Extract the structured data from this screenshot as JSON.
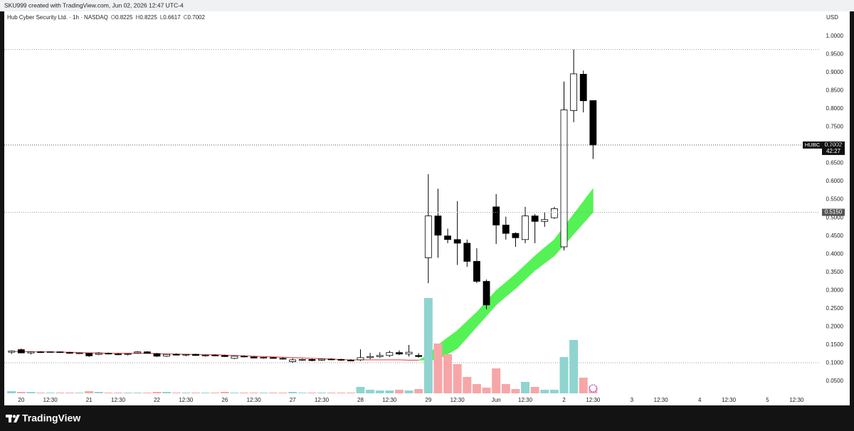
{
  "header": {
    "credit": "SKU999 created with TradingView.com, Jun 02, 2026 12:47 UTC-4"
  },
  "footer": {
    "brand": "TradingView"
  },
  "chart_data": {
    "type": "candlestick",
    "title": "Hub Cyber Security Ltd. · 1h · NASDAQ",
    "ohlc_keys": [
      "O",
      "H",
      "L",
      "C"
    ],
    "currency": "USD",
    "symbol_tag": "HUBC",
    "countdown": "42:27",
    "band_label": "0.5150",
    "up_color": "#ffffff",
    "down_color": "#000000",
    "volume_up_color": "#8fd4cf",
    "volume_down_color": "#f7a6a8",
    "band_color": "#55f255",
    "line_color": "#e0504f",
    "grid": false,
    "ylim": [
      0.011,
      1.068
    ],
    "yticks": [
      {
        "value": 0.05,
        "label": "0.0500"
      },
      {
        "value": 0.1,
        "label": "0.1000"
      },
      {
        "value": 0.15,
        "label": "0.1500"
      },
      {
        "value": 0.2,
        "label": "0.2000"
      },
      {
        "value": 0.25,
        "label": "0.2500"
      },
      {
        "value": 0.3,
        "label": "0.3000"
      },
      {
        "value": 0.35,
        "label": "0.3500"
      },
      {
        "value": 0.4,
        "label": "0.4000"
      },
      {
        "value": 0.45,
        "label": "0.4500"
      },
      {
        "value": 0.5,
        "label": "0.5000"
      },
      {
        "value": 0.55,
        "label": "0.5500"
      },
      {
        "value": 0.6,
        "label": "0.6000"
      },
      {
        "value": 0.65,
        "label": "0.6500"
      },
      {
        "value": 0.7,
        "label": "0.7000"
      },
      {
        "value": 0.75,
        "label": "0.7500"
      },
      {
        "value": 0.8,
        "label": "0.8000"
      },
      {
        "value": 0.85,
        "label": "0.8500"
      },
      {
        "value": 0.9,
        "label": "0.9000"
      },
      {
        "value": 0.95,
        "label": "0.9500"
      },
      {
        "value": 1.0,
        "label": "1.0000"
      }
    ],
    "categories": [
      null,
      "20",
      null,
      null,
      "12:30",
      null,
      null,
      null,
      "21",
      null,
      null,
      "12:30",
      null,
      null,
      null,
      "22",
      null,
      null,
      "12:30",
      null,
      null,
      null,
      "26",
      null,
      null,
      "12:30",
      null,
      null,
      null,
      "27",
      null,
      null,
      "12:30",
      null,
      null,
      null,
      "28",
      null,
      null,
      "12:30",
      null,
      null,
      null,
      "29",
      null,
      null,
      "12:30",
      null,
      null,
      null,
      "Jun",
      null,
      null,
      "12:30",
      null,
      null,
      null,
      "2",
      null,
      null,
      "12:30",
      null,
      null,
      null,
      "3",
      null,
      null,
      "12:30",
      null,
      null,
      null,
      "4",
      null,
      null,
      "12:30",
      null,
      null,
      null,
      "5",
      null,
      null,
      "12:30",
      null
    ],
    "open": [
      0.13,
      0.137,
      0.128,
      0.131,
      0.13,
      0.131,
      0.129,
      0.127,
      0.127,
      0.124,
      0.127,
      0.125,
      0.124,
      0.128,
      0.131,
      0.126,
      0.119,
      0.124,
      0.122,
      0.124,
      0.121,
      0.122,
      0.121,
      0.113,
      0.119,
      0.117,
      0.114,
      0.115,
      0.113,
      0.104,
      0.109,
      0.11,
      0.108,
      0.111,
      0.11,
      0.108,
      0.109,
      0.115,
      0.118,
      0.121,
      0.129,
      0.125,
      0.121,
      0.39,
      0.505,
      0.45,
      0.44,
      0.43,
      0.38,
      0.325,
      0.53,
      0.48,
      0.457,
      0.44,
      0.505,
      0.49,
      0.5,
      0.42,
      0.795,
      0.895,
      0.8225,
      null,
      null,
      null,
      null,
      null,
      null,
      null,
      null,
      null,
      null,
      null,
      null,
      null,
      null,
      null,
      null,
      null,
      null,
      null,
      null,
      null,
      null
    ],
    "high": [
      0.135,
      0.14,
      0.132,
      0.133,
      0.132,
      0.132,
      0.131,
      0.129,
      0.128,
      0.13,
      0.129,
      0.128,
      0.127,
      0.133,
      0.133,
      0.128,
      0.125,
      0.127,
      0.125,
      0.126,
      0.124,
      0.124,
      0.123,
      0.12,
      0.121,
      0.119,
      0.117,
      0.117,
      0.116,
      0.113,
      0.112,
      0.112,
      0.113,
      0.113,
      0.112,
      0.111,
      0.138,
      0.128,
      0.13,
      0.134,
      0.135,
      0.15,
      0.127,
      0.62,
      0.58,
      0.47,
      0.546,
      0.44,
      0.416,
      0.33,
      0.565,
      0.503,
      0.46,
      0.53,
      0.51,
      0.515,
      0.53,
      0.875,
      0.963,
      0.905,
      0.8225,
      null,
      null,
      null,
      null,
      null,
      null,
      null,
      null,
      null,
      null,
      null,
      null,
      null,
      null,
      null,
      null,
      null,
      null,
      null,
      null,
      null,
      null
    ],
    "low": [
      0.125,
      0.128,
      0.124,
      0.128,
      0.128,
      0.128,
      0.126,
      0.125,
      0.117,
      0.122,
      0.124,
      0.122,
      0.121,
      0.126,
      0.126,
      0.117,
      0.117,
      0.121,
      0.119,
      0.12,
      0.118,
      0.119,
      0.117,
      0.111,
      0.116,
      0.113,
      0.112,
      0.112,
      0.11,
      0.101,
      0.106,
      0.105,
      0.106,
      0.108,
      0.106,
      0.105,
      0.106,
      0.111,
      0.115,
      0.117,
      0.122,
      0.118,
      0.115,
      0.32,
      0.39,
      0.43,
      0.37,
      0.365,
      0.32,
      0.248,
      0.428,
      0.44,
      0.42,
      0.43,
      0.43,
      0.475,
      0.497,
      0.41,
      0.763,
      0.79,
      0.6617,
      null,
      null,
      null,
      null,
      null,
      null,
      null,
      null,
      null,
      null,
      null,
      null,
      null,
      null,
      null,
      null,
      null,
      null,
      null,
      null,
      null,
      null
    ],
    "close": [
      0.133,
      0.128,
      0.131,
      0.129,
      0.131,
      0.129,
      0.127,
      0.128,
      0.12,
      0.127,
      0.125,
      0.123,
      0.126,
      0.131,
      0.127,
      0.119,
      0.124,
      0.122,
      0.124,
      0.121,
      0.122,
      0.12,
      0.118,
      0.119,
      0.117,
      0.114,
      0.116,
      0.113,
      0.111,
      0.109,
      0.11,
      0.107,
      0.111,
      0.11,
      0.108,
      0.106,
      0.115,
      0.118,
      0.121,
      0.129,
      0.125,
      0.13,
      0.118,
      0.505,
      0.452,
      0.44,
      0.43,
      0.38,
      0.325,
      0.26,
      0.48,
      0.457,
      0.445,
      0.505,
      0.49,
      0.495,
      0.525,
      0.797,
      0.896,
      0.822,
      0.7002,
      null,
      null,
      null,
      null,
      null,
      null,
      null,
      null,
      null,
      null,
      null,
      null,
      null,
      null,
      null,
      null,
      null,
      null,
      null,
      null,
      null,
      null
    ],
    "volume": [
      3,
      2,
      2,
      1,
      1,
      1,
      1,
      1,
      3,
      2,
      1,
      1,
      1,
      1,
      1,
      2,
      2,
      1,
      1,
      1,
      1,
      1,
      2,
      1,
      1,
      1,
      1,
      1,
      1,
      2,
      1,
      1,
      1,
      1,
      1,
      1,
      9,
      5,
      4,
      4,
      5,
      4,
      6,
      134,
      70,
      55,
      41,
      23,
      13,
      8,
      35,
      13,
      6,
      16,
      9,
      5,
      5,
      51,
      75,
      22,
      10,
      null,
      null,
      null,
      null,
      null,
      null,
      null,
      null,
      null,
      null,
      null,
      null,
      null,
      null,
      null,
      null,
      null,
      null,
      null,
      null,
      null,
      null
    ],
    "band": {
      "lower": [
        0.132,
        0.132,
        0.131,
        0.131,
        0.131,
        0.13,
        0.13,
        0.129,
        0.128,
        0.128,
        0.127,
        0.127,
        0.127,
        0.127,
        0.127,
        0.126,
        0.125,
        0.125,
        0.124,
        0.124,
        0.123,
        0.123,
        0.122,
        0.121,
        0.12,
        0.119,
        0.118,
        0.117,
        0.116,
        0.115,
        0.114,
        0.113,
        0.112,
        0.111,
        0.11,
        0.109,
        0.109,
        0.109,
        0.109,
        0.109,
        0.109,
        0.108,
        0.108,
        0.108,
        0.11,
        0.125,
        0.14,
        0.17,
        0.2,
        0.23,
        0.26,
        0.283,
        0.305,
        0.33,
        0.355,
        0.375,
        0.395,
        0.425,
        0.455,
        0.485,
        0.515,
        null,
        null,
        null,
        null,
        null,
        null,
        null,
        null,
        null,
        null,
        null,
        null,
        null,
        null,
        null,
        null,
        null,
        null,
        null,
        null,
        null,
        null
      ],
      "upper": [
        0.132,
        0.132,
        0.131,
        0.131,
        0.131,
        0.13,
        0.13,
        0.129,
        0.128,
        0.128,
        0.127,
        0.127,
        0.127,
        0.127,
        0.127,
        0.126,
        0.125,
        0.125,
        0.124,
        0.124,
        0.123,
        0.123,
        0.122,
        0.121,
        0.12,
        0.119,
        0.118,
        0.117,
        0.116,
        0.115,
        0.114,
        0.113,
        0.112,
        0.111,
        0.11,
        0.109,
        0.109,
        0.109,
        0.109,
        0.109,
        0.109,
        0.108,
        0.108,
        0.122,
        0.15,
        0.17,
        0.19,
        0.215,
        0.24,
        0.27,
        0.3,
        0.322,
        0.345,
        0.37,
        0.395,
        0.418,
        0.44,
        0.475,
        0.51,
        0.545,
        0.58,
        null,
        null,
        null,
        null,
        null,
        null,
        null,
        null,
        null,
        null,
        null,
        null,
        null,
        null,
        null,
        null,
        null,
        null,
        null,
        null,
        null,
        null
      ]
    }
  }
}
